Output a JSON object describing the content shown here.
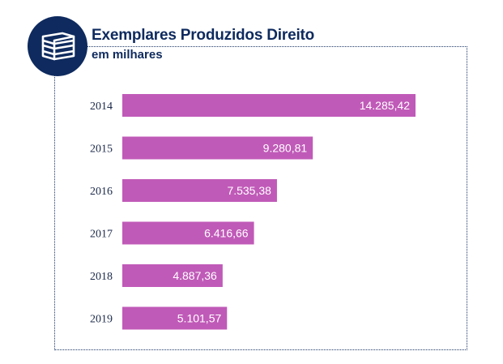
{
  "header": {
    "title": "Exemplares Produzidos Direito",
    "subtitle": "em milhares",
    "icon": "books-icon"
  },
  "colors": {
    "bar": "#c05ab8",
    "title": "#0e2a5e",
    "badge": "#0e2a5e",
    "label": "#1b2a4a",
    "value_text": "#ffffff"
  },
  "chart_data": {
    "type": "bar",
    "orientation": "horizontal",
    "title": "Exemplares Produzidos Direito",
    "subtitle": "em milhares",
    "xlabel": "",
    "ylabel": "",
    "categories": [
      "2014",
      "2015",
      "2016",
      "2017",
      "2018",
      "2019"
    ],
    "values": [
      14285.42,
      9280.81,
      7535.38,
      6416.66,
      4887.36,
      5101.57
    ],
    "value_labels": [
      "14.285,42",
      "9.280,81",
      "7.535,38",
      "6.416,66",
      "4.887,36",
      "5.101,57"
    ],
    "xlim": [
      0,
      14285.42
    ],
    "grid": false,
    "legend": "none",
    "data_labels": "inside-end"
  }
}
